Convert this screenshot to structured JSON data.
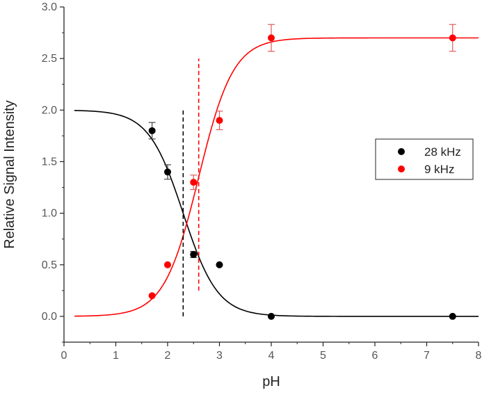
{
  "chart_data": {
    "type": "scatter",
    "title": "",
    "xlabel": "pH",
    "ylabel": "Relative Signal Intensity",
    "xlim": [
      0,
      8
    ],
    "ylim": [
      -0.25,
      3.0
    ],
    "xticks": [
      "0",
      "1",
      "2",
      "3",
      "4",
      "5",
      "6",
      "7",
      "8"
    ],
    "yticks": [
      "0.0",
      "0.5",
      "1.0",
      "1.5",
      "2.0",
      "2.5",
      "3.0"
    ],
    "grid": false,
    "legend_position": "right",
    "series": [
      {
        "name": "28 kHz",
        "color": "#000000",
        "x": [
          1.7,
          2.0,
          2.5,
          3.0,
          4.0,
          7.5
        ],
        "y": [
          1.8,
          1.4,
          0.6,
          0.5,
          0.0,
          0.0
        ],
        "err": [
          0.08,
          0.07,
          0.03,
          0.0,
          0.0,
          0.0
        ],
        "fit": {
          "kind": "sigmoid",
          "low": 0.0,
          "high": 2.0,
          "midpoint": 2.3,
          "direction": "decreasing"
        },
        "marker_line_x": 2.3,
        "marker_line_y": [
          0.0,
          2.0
        ]
      },
      {
        "name": "9 kHz",
        "color": "#ff0000",
        "x": [
          1.7,
          2.0,
          2.5,
          3.0,
          4.0,
          7.5
        ],
        "y": [
          0.2,
          0.5,
          1.3,
          1.9,
          2.7,
          2.7
        ],
        "err": [
          0.0,
          0.0,
          0.07,
          0.09,
          0.13,
          0.13
        ],
        "fit": {
          "kind": "sigmoid",
          "low": 0.0,
          "high": 2.7,
          "midpoint": 2.6,
          "direction": "increasing"
        },
        "marker_line_x": 2.6,
        "marker_line_y": [
          0.25,
          2.5
        ]
      }
    ]
  }
}
